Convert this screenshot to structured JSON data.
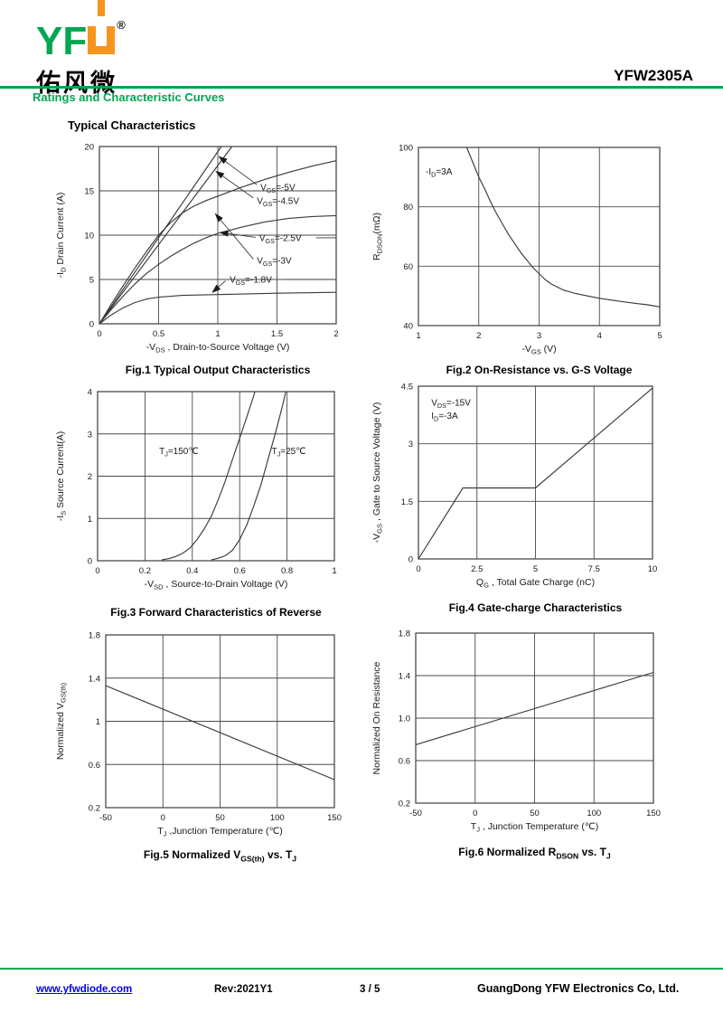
{
  "header": {
    "logo": {
      "text_green": "YF",
      "reg": "®",
      "chinese": "佑风微"
    },
    "part_number": "YFW2305A",
    "section_title": "Ratings and Characteristic Curves",
    "subsection_title": "Typical Characteristics"
  },
  "footer": {
    "website": "www.yfwdiode.com",
    "revision": "Rev:2021Y1",
    "page": "3 / 5",
    "company": "GuangDong YFW Electronics Co, Ltd."
  },
  "colors": {
    "brand_green": "#00A651",
    "brand_orange": "#F7941D",
    "link_blue": "#0000EE",
    "curve": "#3a3a3a",
    "grid": "#4a4a4a",
    "text": "#1a1a1a"
  },
  "chart_data": [
    {
      "id": "fig1",
      "type": "line",
      "caption": "Fig.1 Typical Output Characteristics",
      "xlabel": "-V_{DS} , Drain-to-Source Voltage (V)",
      "ylabel": "-I_{D} Drain Current (A)",
      "xlim": [
        0,
        2
      ],
      "ylim": [
        0,
        20
      ],
      "grid": true,
      "xtick_vals": [
        0,
        0.5,
        1,
        1.5,
        2
      ],
      "xtick_labels": [
        "0",
        "0.5",
        "1",
        "1.5",
        "2"
      ],
      "ytick_vals": [
        0,
        5,
        10,
        15,
        20
      ],
      "ytick_labels": [
        "0",
        "5",
        "10",
        "15",
        "20"
      ],
      "series": [
        {
          "name": "VGS=-5V",
          "points": [
            [
              0,
              0
            ],
            [
              1.03,
              20
            ]
          ]
        },
        {
          "name": "VGS=-4.5V",
          "points": [
            [
              0,
              0
            ],
            [
              1.12,
              20
            ]
          ]
        },
        {
          "name": "VGS=-3V",
          "points": [
            [
              0,
              0
            ],
            [
              0.1,
              2.2
            ],
            [
              0.2,
              4.3
            ],
            [
              0.3,
              6.3
            ],
            [
              0.4,
              8.2
            ],
            [
              0.5,
              10
            ],
            [
              0.6,
              11.4
            ],
            [
              0.7,
              12.5
            ],
            [
              0.8,
              13.3
            ],
            [
              0.9,
              13.9
            ],
            [
              1,
              14.4
            ],
            [
              1.2,
              15.4
            ],
            [
              1.4,
              16.3
            ],
            [
              1.6,
              17.1
            ],
            [
              1.8,
              17.8
            ],
            [
              2,
              18.4
            ]
          ]
        },
        {
          "name": "VGS=-2.5V",
          "points": [
            [
              0,
              0
            ],
            [
              0.1,
              1.6
            ],
            [
              0.2,
              3.1
            ],
            [
              0.3,
              4.5
            ],
            [
              0.4,
              5.7
            ],
            [
              0.5,
              6.7
            ],
            [
              0.6,
              7.6
            ],
            [
              0.7,
              8.4
            ],
            [
              0.8,
              9.1
            ],
            [
              0.9,
              9.7
            ],
            [
              1,
              10.2
            ],
            [
              1.2,
              10.9
            ],
            [
              1.4,
              11.5
            ],
            [
              1.6,
              11.9
            ],
            [
              1.8,
              12.1
            ],
            [
              2,
              12.2
            ]
          ]
        },
        {
          "name": "VGS=-1.8V",
          "points": [
            [
              0,
              0
            ],
            [
              0.1,
              1.0
            ],
            [
              0.2,
              1.8
            ],
            [
              0.3,
              2.4
            ],
            [
              0.4,
              2.8
            ],
            [
              0.5,
              3.0
            ],
            [
              0.7,
              3.2
            ],
            [
              1,
              3.3
            ],
            [
              1.5,
              3.45
            ],
            [
              2,
              3.55
            ]
          ]
        }
      ],
      "annotations": [
        {
          "text": "V_{GS}=-5V",
          "x": 1.36,
          "y": 15.4
        },
        {
          "text": "V_{GS}=-4.5V",
          "x": 1.33,
          "y": 13.9
        },
        {
          "text": "V_{GS}=-2.5V",
          "x": 1.35,
          "y": 9.7
        },
        {
          "text": "V_{GS}=-3V",
          "x": 1.33,
          "y": 7.15
        },
        {
          "text": "V_{GS}=-1.8V",
          "x": 1.1,
          "y": 5.0
        }
      ],
      "lines": [
        {
          "x1": 1.33,
          "y1": 15.7,
          "x2": 1.01,
          "y2": 18.85,
          "arrow": true
        },
        {
          "x1": 1.3,
          "y1": 14.2,
          "x2": 0.985,
          "y2": 17.2,
          "arrow": true
        },
        {
          "x1": 1.32,
          "y1": 9.75,
          "x2": 1.02,
          "y2": 10.3,
          "arrow": true
        },
        {
          "x1": 1.3,
          "y1": 7.3,
          "x2": 0.98,
          "y2": 12.4,
          "arrow": true
        },
        {
          "x1": 1.065,
          "y1": 4.85,
          "x2": 0.955,
          "y2": 3.55,
          "arrow": true
        },
        {
          "x1": 1.83,
          "y1": 9.7,
          "x2": 2.0,
          "y2": 9.7,
          "arrow": false
        },
        {
          "x1": 1.57,
          "y1": 5.0,
          "x2": 2.0,
          "y2": 5.0,
          "arrow": false
        }
      ]
    },
    {
      "id": "fig2",
      "type": "line",
      "caption": "Fig.2 On-Resistance vs. G-S Voltage",
      "xlabel": "-V_{GS} (V)",
      "ylabel": "R_{DSON}(mΩ)",
      "xlim": [
        1,
        5
      ],
      "ylim": [
        40,
        100
      ],
      "grid": true,
      "xtick_vals": [
        1,
        2,
        3,
        4,
        5
      ],
      "xtick_labels": [
        "1",
        "2",
        "3",
        "4",
        "5"
      ],
      "ytick_vals": [
        40,
        60,
        80,
        100
      ],
      "ytick_labels": [
        "40",
        "60",
        "80",
        "100"
      ],
      "series": [
        {
          "name": "RDSON vs VGS",
          "points": [
            [
              1.8,
              100
            ],
            [
              1.9,
              95
            ],
            [
              2.0,
              90
            ],
            [
              2.1,
              86
            ],
            [
              2.2,
              81.5
            ],
            [
              2.3,
              77.5
            ],
            [
              2.4,
              74
            ],
            [
              2.5,
              70.5
            ],
            [
              2.6,
              67.5
            ],
            [
              2.7,
              64.5
            ],
            [
              2.8,
              62
            ],
            [
              2.9,
              59.5
            ],
            [
              3.0,
              57.5
            ],
            [
              3.1,
              55.5
            ],
            [
              3.2,
              54
            ],
            [
              3.4,
              52
            ],
            [
              3.6,
              50.8
            ],
            [
              3.8,
              50
            ],
            [
              4.0,
              49.2
            ],
            [
              4.2,
              48.6
            ],
            [
              4.4,
              48
            ],
            [
              4.6,
              47.5
            ],
            [
              4.8,
              47
            ],
            [
              5.0,
              46.3
            ]
          ]
        }
      ],
      "annotations": [
        {
          "text": "-I_{D}=3A",
          "x": 1.12,
          "y": 92
        }
      ],
      "lines": []
    },
    {
      "id": "fig3",
      "type": "line",
      "caption": "Fig.3 Forward Characteristics of Reverse",
      "xlabel": "-V_{SD} , Source-to-Drain Voltage (V)",
      "ylabel": "-I_{S} Source Current(A)",
      "xlim": [
        0,
        1
      ],
      "ylim": [
        0,
        4
      ],
      "grid": true,
      "xtick_vals": [
        0,
        0.2,
        0.4,
        0.6,
        0.8,
        1
      ],
      "xtick_labels": [
        "0",
        "0.2",
        "0.4",
        "0.6",
        "0.8",
        "1"
      ],
      "ytick_vals": [
        0,
        1,
        2,
        3,
        4
      ],
      "ytick_labels": [
        "0",
        "1",
        "2",
        "3",
        "4"
      ],
      "series": [
        {
          "name": "TJ=150C",
          "points": [
            [
              0.27,
              0.02
            ],
            [
              0.3,
              0.05
            ],
            [
              0.33,
              0.1
            ],
            [
              0.36,
              0.18
            ],
            [
              0.39,
              0.3
            ],
            [
              0.42,
              0.5
            ],
            [
              0.45,
              0.75
            ],
            [
              0.48,
              1.05
            ],
            [
              0.51,
              1.45
            ],
            [
              0.54,
              1.9
            ],
            [
              0.57,
              2.4
            ],
            [
              0.6,
              2.9
            ],
            [
              0.63,
              3.4
            ],
            [
              0.665,
              4.0
            ]
          ]
        },
        {
          "name": "TJ=25C",
          "points": [
            [
              0.48,
              0.02
            ],
            [
              0.51,
              0.06
            ],
            [
              0.54,
              0.12
            ],
            [
              0.57,
              0.25
            ],
            [
              0.6,
              0.5
            ],
            [
              0.63,
              0.85
            ],
            [
              0.66,
              1.3
            ],
            [
              0.69,
              1.8
            ],
            [
              0.72,
              2.4
            ],
            [
              0.75,
              3.0
            ],
            [
              0.78,
              3.65
            ],
            [
              0.795,
              4.0
            ]
          ]
        }
      ],
      "annotations": [
        {
          "text": "T_{J}=150℃",
          "x": 0.26,
          "y": 2.6
        },
        {
          "text": "T_{J}=25℃",
          "x": 0.735,
          "y": 2.6
        }
      ],
      "lines": []
    },
    {
      "id": "fig4",
      "type": "line",
      "caption": "Fig.4 Gate-charge Characteristics",
      "xlabel": "Q_{G} , Total Gate Charge (nC)",
      "ylabel": "-V_{GS} , Gate to Source Voltage (V)",
      "xlim": [
        0,
        10
      ],
      "ylim": [
        0,
        4.5
      ],
      "grid": true,
      "xtick_vals": [
        0,
        2.5,
        5,
        7.5,
        10
      ],
      "xtick_labels": [
        "0",
        "2.5",
        "5",
        "7.5",
        "10"
      ],
      "ytick_vals": [
        0,
        1.5,
        3,
        4.5
      ],
      "ytick_labels": [
        "0",
        "1.5",
        "3",
        "4.5"
      ],
      "series": [
        {
          "name": "gate charge",
          "points": [
            [
              0,
              0
            ],
            [
              1.9,
              1.85
            ],
            [
              5.0,
              1.85
            ],
            [
              10,
              4.45
            ]
          ]
        }
      ],
      "annotations": [
        {
          "text": "V_{DS}=-15V",
          "x": 0.55,
          "y": 4.08
        },
        {
          "text": "I_{D}=-3A",
          "x": 0.55,
          "y": 3.74
        }
      ],
      "lines": []
    },
    {
      "id": "fig5",
      "type": "line",
      "caption": "Fig.5 Normalized V_{GS(th)} vs. T_{J}",
      "xlabel": "T_{J} ,Junction Temperature (℃)",
      "ylabel": "Normalized V_{GS(th)}",
      "xlim": [
        -50,
        150
      ],
      "ylim": [
        0.2,
        1.8
      ],
      "grid": true,
      "xtick_vals": [
        -50,
        0,
        50,
        100,
        150
      ],
      "xtick_labels": [
        "-50",
        "0",
        "50",
        "100",
        "150"
      ],
      "ytick_vals": [
        0.2,
        0.6,
        1.0,
        1.4,
        1.8
      ],
      "ytick_labels": [
        "0.2",
        "0.6",
        "1",
        "1.4",
        "1.8"
      ],
      "series": [
        {
          "name": "normalized VGS(th)",
          "points": [
            [
              -50,
              1.33
            ],
            [
              150,
              0.46
            ]
          ]
        }
      ],
      "annotations": [],
      "lines": []
    },
    {
      "id": "fig6",
      "type": "line",
      "caption": "Fig.6 Normalized R_{DSON} vs. T_{J}",
      "xlabel": "T_{J} , Junction Temperature (℃)",
      "ylabel": "Normalized On Resistance",
      "xlim": [
        -50,
        150
      ],
      "ylim": [
        0.2,
        1.8
      ],
      "grid": true,
      "xtick_vals": [
        -50,
        0,
        50,
        100,
        150
      ],
      "xtick_labels": [
        "-50",
        "0",
        "50",
        "100",
        "150"
      ],
      "ytick_vals": [
        0.2,
        0.6,
        1.0,
        1.4,
        1.8
      ],
      "ytick_labels": [
        "0.2",
        "0.6",
        "1.0",
        "1.4",
        "1.8"
      ],
      "series": [
        {
          "name": "normalized RDSON",
          "points": [
            [
              -50,
              0.75
            ],
            [
              150,
              1.43
            ]
          ]
        }
      ],
      "annotations": [],
      "lines": []
    }
  ]
}
